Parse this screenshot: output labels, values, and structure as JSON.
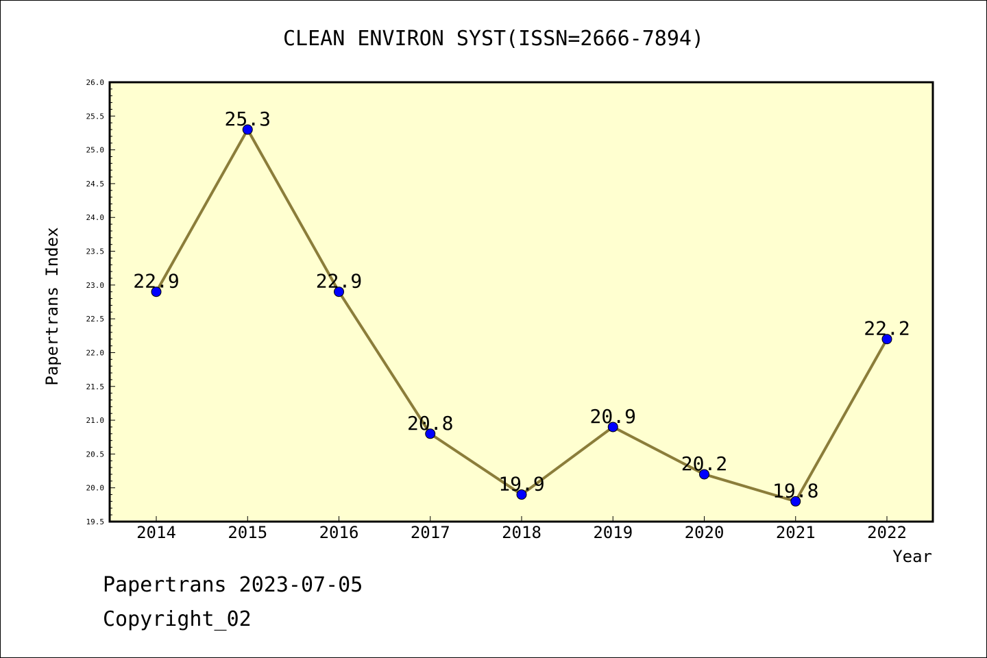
{
  "chart_data": {
    "type": "line",
    "title": "CLEAN ENVIRON SYST(ISSN=2666-7894)",
    "xlabel": "Year",
    "ylabel": "Papertrans Index",
    "categories": [
      "2014",
      "2015",
      "2016",
      "2017",
      "2018",
      "2019",
      "2020",
      "2021",
      "2022"
    ],
    "values": [
      22.9,
      25.3,
      22.9,
      20.8,
      19.9,
      20.9,
      20.2,
      19.8,
      22.2
    ],
    "data_labels": [
      "22.9",
      "25.3",
      "22.9",
      "20.8",
      "19.9",
      "20.9",
      "20.2",
      "19.8",
      "22.2"
    ],
    "ylim": [
      19.5,
      26.0
    ],
    "yticks": [
      "19.5",
      "20.0",
      "20.5",
      "21.0",
      "21.5",
      "22.0",
      "22.5",
      "23.0",
      "23.5",
      "24.0",
      "24.5",
      "25.0",
      "25.5",
      "26.0"
    ],
    "grid": false,
    "legend": "none",
    "colors": {
      "plot_background": "#ffffd0",
      "line": "#8b7d3a",
      "marker": "#0000ff"
    }
  },
  "footer": {
    "line1": "Papertrans 2023-07-05",
    "line2": "Copyright_02"
  }
}
